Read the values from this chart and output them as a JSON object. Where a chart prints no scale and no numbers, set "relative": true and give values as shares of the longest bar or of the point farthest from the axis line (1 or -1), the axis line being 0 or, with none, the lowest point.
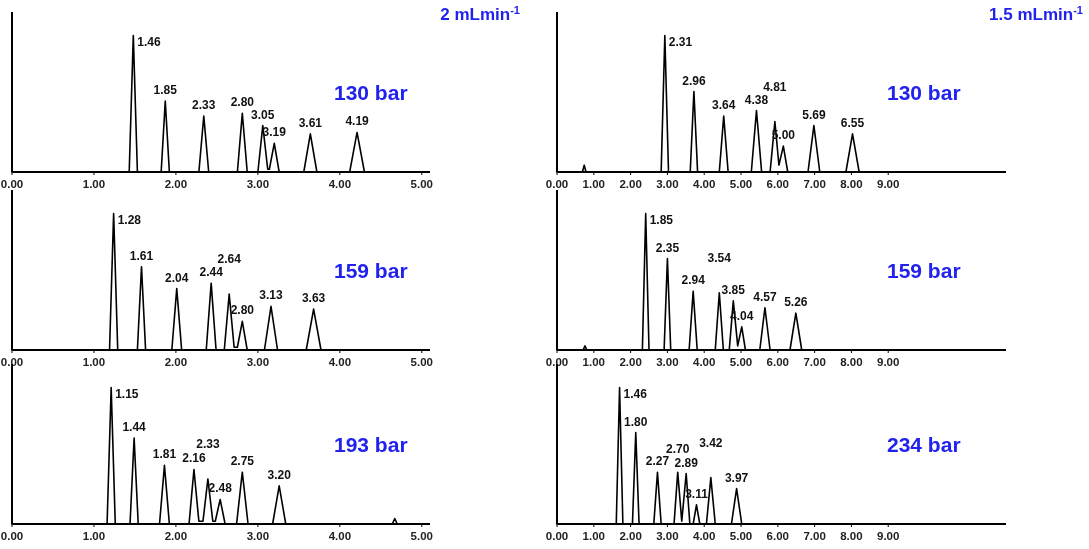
{
  "chart_data": [
    {
      "type": "line",
      "title": "2 mLmin$^{-1}$",
      "relative": true,
      "xlim": [
        0,
        5.1
      ],
      "xticks": [
        {
          "value": 0,
          "label": "0.00"
        },
        {
          "value": 1,
          "label": "1.00"
        },
        {
          "value": 2,
          "label": "2.00"
        },
        {
          "value": 3,
          "label": "3.00"
        },
        {
          "value": 4,
          "label": "4.00"
        },
        {
          "value": 5,
          "label": "5.00"
        }
      ],
      "series": [
        {
          "color": "#000000",
          "x": [
            0,
            1.43,
            1.48,
            1.53,
            1.82,
            1.87,
            1.92,
            2.28,
            2.34,
            2.4,
            2.75,
            2.81,
            2.87,
            3.0,
            3.06,
            3.12,
            3.14,
            3.2,
            3.26,
            3.56,
            3.64,
            3.72,
            4.12,
            4.21,
            4.3,
            5.08
          ],
          "values": [
            0,
            0,
            1,
            0,
            0,
            0.52,
            0,
            0,
            0.41,
            0,
            0,
            0.43,
            0,
            0,
            0.34,
            0.02,
            0.02,
            0.21,
            0,
            0,
            0.28,
            0,
            0,
            0.29,
            0,
            0
          ]
        }
      ],
      "annotations": [
        "130 bar",
        {
          "text": "1.46",
          "x": 1.48,
          "y": 1
        },
        {
          "text": "1.85",
          "x": 1.87,
          "y": 0.52
        },
        {
          "text": "2.33",
          "x": 2.34,
          "y": 0.41
        },
        {
          "text": "2.80",
          "x": 2.81,
          "y": 0.43
        },
        {
          "text": "3.05",
          "x": 3.06,
          "y": 0.34
        },
        {
          "text": "3.19",
          "x": 3.2,
          "y": 0.21
        },
        {
          "text": "3.61",
          "x": 3.64,
          "y": 0.28
        },
        {
          "text": "4.19",
          "x": 4.21,
          "y": 0.29
        }
      ]
    },
    {
      "type": "line",
      "title": "1.5 mLmin$^{-1}$",
      "relative": true,
      "xlim": [
        0,
        12.2
      ],
      "xticks": [
        {
          "value": 0,
          "label": "0.00"
        },
        {
          "value": 1,
          "label": "1.00"
        },
        {
          "value": 2,
          "label": "2.00"
        },
        {
          "value": 3,
          "label": "3.00"
        },
        {
          "value": 4,
          "label": "4.00"
        },
        {
          "value": 5,
          "label": "5.00"
        },
        {
          "value": 6,
          "label": "6.00"
        },
        {
          "value": 7,
          "label": "7.00"
        },
        {
          "value": 8,
          "label": "8.00"
        },
        {
          "value": 9,
          "label": "9.00"
        }
      ],
      "series": [
        {
          "color": "#000000",
          "x": [
            0,
            0.69,
            0.74,
            0.79,
            2.83,
            2.93,
            3.03,
            3.62,
            3.72,
            3.82,
            4.41,
            4.53,
            4.65,
            5.28,
            5.42,
            5.56,
            5.79,
            5.92,
            6.03,
            6.15,
            6.27,
            6.82,
            6.98,
            7.14,
            7.85,
            8.03,
            8.21,
            12.1
          ],
          "values": [
            0,
            0,
            0.05,
            0,
            0,
            1,
            0,
            0,
            0.59,
            0,
            0,
            0.41,
            0,
            0,
            0.45,
            0,
            0,
            0.37,
            0.05,
            0.19,
            0,
            0,
            0.34,
            0,
            0,
            0.28,
            0,
            0
          ]
        }
      ],
      "annotations": [
        "130 bar",
        {
          "text": "2.31",
          "x": 2.93,
          "y": 1
        },
        {
          "text": "2.96",
          "x": 3.72,
          "y": 0.59
        },
        {
          "text": "3.64",
          "x": 4.53,
          "y": 0.41
        },
        {
          "text": "4.38",
          "x": 5.42,
          "y": 0.45
        },
        {
          "text": "4.81",
          "x": 5.92,
          "y": 0.37
        },
        {
          "text": "5.00",
          "x": 6.15,
          "y": 0.19
        },
        {
          "text": "5.69",
          "x": 6.98,
          "y": 0.34
        },
        {
          "text": "6.55",
          "x": 8.03,
          "y": 0.28
        }
      ]
    },
    {
      "type": "line",
      "relative": true,
      "xlim": [
        0,
        5.1
      ],
      "xticks": [
        {
          "value": 0,
          "label": "0.00"
        },
        {
          "value": 1,
          "label": "1.00"
        },
        {
          "value": 2,
          "label": "2.00"
        },
        {
          "value": 3,
          "label": "3.00"
        },
        {
          "value": 4,
          "label": "4.00"
        },
        {
          "value": 5,
          "label": "5.00"
        }
      ],
      "series": [
        {
          "color": "#000000",
          "x": [
            0,
            1.19,
            1.24,
            1.29,
            1.53,
            1.58,
            1.63,
            1.95,
            2.01,
            2.07,
            2.37,
            2.43,
            2.49,
            2.59,
            2.65,
            2.71,
            2.75,
            2.81,
            2.87,
            3.08,
            3.16,
            3.24,
            3.59,
            3.68,
            3.77,
            5.08
          ],
          "values": [
            0,
            0,
            1,
            0,
            0,
            0.61,
            0,
            0,
            0.45,
            0,
            0,
            0.49,
            0,
            0,
            0.41,
            0.02,
            0.02,
            0.21,
            0,
            0,
            0.32,
            0,
            0,
            0.3,
            0,
            0
          ]
        }
      ],
      "annotations": [
        "159 bar",
        {
          "text": "1.28",
          "x": 1.24,
          "y": 1
        },
        {
          "text": "1.61",
          "x": 1.58,
          "y": 0.61
        },
        {
          "text": "2.04",
          "x": 2.01,
          "y": 0.45
        },
        {
          "text": "2.44",
          "x": 2.43,
          "y": 0.49
        },
        {
          "text": "2.64",
          "x": 2.65,
          "y": 0.41
        },
        {
          "text": "2.80",
          "x": 2.81,
          "y": 0.21
        },
        {
          "text": "3.13",
          "x": 3.16,
          "y": 0.32
        },
        {
          "text": "3.63",
          "x": 3.68,
          "y": 0.3
        }
      ]
    },
    {
      "type": "line",
      "relative": true,
      "xlim": [
        0,
        12.2
      ],
      "xticks": [
        {
          "value": 0,
          "label": "0.00"
        },
        {
          "value": 1,
          "label": "1.00"
        },
        {
          "value": 2,
          "label": "2.00"
        },
        {
          "value": 3,
          "label": "3.00"
        },
        {
          "value": 4,
          "label": "4.00"
        },
        {
          "value": 5,
          "label": "5.00"
        },
        {
          "value": 6,
          "label": "6.00"
        },
        {
          "value": 7,
          "label": "7.00"
        },
        {
          "value": 8,
          "label": "8.00"
        },
        {
          "value": 9,
          "label": "9.00"
        }
      ],
      "series": [
        {
          "color": "#000000",
          "x": [
            0,
            0.71,
            0.76,
            0.81,
            2.32,
            2.41,
            2.5,
            2.91,
            3.0,
            3.09,
            3.59,
            3.7,
            3.81,
            4.3,
            4.41,
            4.52,
            4.68,
            4.79,
            4.91,
            5.02,
            5.12,
            5.51,
            5.65,
            5.79,
            6.33,
            6.49,
            6.65,
            12.1
          ],
          "values": [
            0,
            0,
            0.03,
            0,
            0,
            1,
            0,
            0,
            0.67,
            0,
            0,
            0.43,
            0,
            0,
            0.42,
            0,
            0,
            0.36,
            0.03,
            0.17,
            0,
            0,
            0.31,
            0,
            0,
            0.27,
            0,
            0
          ]
        }
      ],
      "annotations": [
        "159 bar",
        {
          "text": "1.85",
          "x": 2.41,
          "y": 1
        },
        {
          "text": "2.35",
          "x": 3.0,
          "y": 0.67
        },
        {
          "text": "2.94",
          "x": 3.7,
          "y": 0.43
        },
        {
          "text": "3.54",
          "x": 4.41,
          "y": 0.42
        },
        {
          "text": "3.85",
          "x": 4.79,
          "y": 0.36
        },
        {
          "text": "4.04",
          "x": 5.02,
          "y": 0.17
        },
        {
          "text": "4.57",
          "x": 5.65,
          "y": 0.31
        },
        {
          "text": "5.26",
          "x": 6.49,
          "y": 0.27
        }
      ]
    },
    {
      "type": "line",
      "relative": true,
      "xlim": [
        0,
        5.1
      ],
      "xticks": [
        {
          "value": 0,
          "label": "0.00"
        },
        {
          "value": 1,
          "label": "1.00"
        },
        {
          "value": 2,
          "label": "2.00"
        },
        {
          "value": 3,
          "label": "3.00"
        },
        {
          "value": 4,
          "label": "4.00"
        },
        {
          "value": 5,
          "label": "5.00"
        }
      ],
      "series": [
        {
          "color": "#000000",
          "x": [
            0,
            1.16,
            1.21,
            1.26,
            1.44,
            1.49,
            1.54,
            1.8,
            1.86,
            1.92,
            2.16,
            2.22,
            2.28,
            2.33,
            2.39,
            2.45,
            2.48,
            2.54,
            2.6,
            2.74,
            2.81,
            2.88,
            3.18,
            3.26,
            3.34,
            4.64,
            4.67,
            4.7,
            5.06
          ],
          "values": [
            0,
            0,
            1,
            0,
            0,
            0.63,
            0,
            0,
            0.43,
            0,
            0,
            0.4,
            0.02,
            0.02,
            0.33,
            0.02,
            0.02,
            0.18,
            0,
            0,
            0.38,
            0,
            0,
            0.28,
            0,
            0,
            0.04,
            0,
            0
          ]
        }
      ],
      "annotations": [
        "193 bar",
        {
          "text": "1.15",
          "x": 1.21,
          "y": 1
        },
        {
          "text": "1.44",
          "x": 1.49,
          "y": 0.63
        },
        {
          "text": "1.81",
          "x": 1.86,
          "y": 0.43
        },
        {
          "text": "2.16",
          "x": 2.22,
          "y": 0.4
        },
        {
          "text": "2.33",
          "x": 2.39,
          "y": 0.33
        },
        {
          "text": "2.48",
          "x": 2.54,
          "y": 0.18
        },
        {
          "text": "2.75",
          "x": 2.81,
          "y": 0.38
        },
        {
          "text": "3.20",
          "x": 3.26,
          "y": 0.28
        }
      ]
    },
    {
      "type": "line",
      "relative": true,
      "xlim": [
        0,
        12.2
      ],
      "xticks": [
        {
          "value": 0,
          "label": "0.00"
        },
        {
          "value": 1,
          "label": "1.00"
        },
        {
          "value": 2,
          "label": "2.00"
        },
        {
          "value": 3,
          "label": "3.00"
        },
        {
          "value": 4,
          "label": "4.00"
        },
        {
          "value": 5,
          "label": "5.00"
        },
        {
          "value": 6,
          "label": "6.00"
        },
        {
          "value": 7,
          "label": "7.00"
        },
        {
          "value": 8,
          "label": "8.00"
        },
        {
          "value": 9,
          "label": "9.00"
        }
      ],
      "series": [
        {
          "color": "#000000",
          "x": [
            0,
            1.61,
            1.7,
            1.79,
            2.05,
            2.14,
            2.23,
            2.63,
            2.73,
            2.83,
            3.18,
            3.28,
            3.39,
            3.51,
            3.61,
            3.7,
            3.79,
            3.88,
            4.06,
            4.18,
            4.3,
            4.74,
            4.88,
            5.02,
            6.14
          ],
          "values": [
            0,
            0,
            1,
            0,
            0,
            0.67,
            0,
            0,
            0.38,
            0,
            0,
            0.38,
            0.02,
            0.37,
            0,
            0,
            0.14,
            0,
            0,
            0.34,
            0,
            0,
            0.26,
            0,
            0
          ]
        }
      ],
      "annotations": [
        "234 bar",
        {
          "text": "1.46",
          "x": 1.7,
          "y": 1
        },
        {
          "text": "1.80",
          "x": 2.14,
          "y": 0.67
        },
        {
          "text": "2.27",
          "x": 2.73,
          "y": 0.38
        },
        {
          "text": "2.70",
          "x": 3.28,
          "y": 0.38
        },
        {
          "text": "2.89",
          "x": 3.51,
          "y": 0.37
        },
        {
          "text": "3.11",
          "x": 3.79,
          "y": 0.14
        },
        {
          "text": "3.42",
          "x": 4.18,
          "y": 0.34
        },
        {
          "text": "3.97",
          "x": 4.88,
          "y": 0.26
        }
      ]
    }
  ]
}
